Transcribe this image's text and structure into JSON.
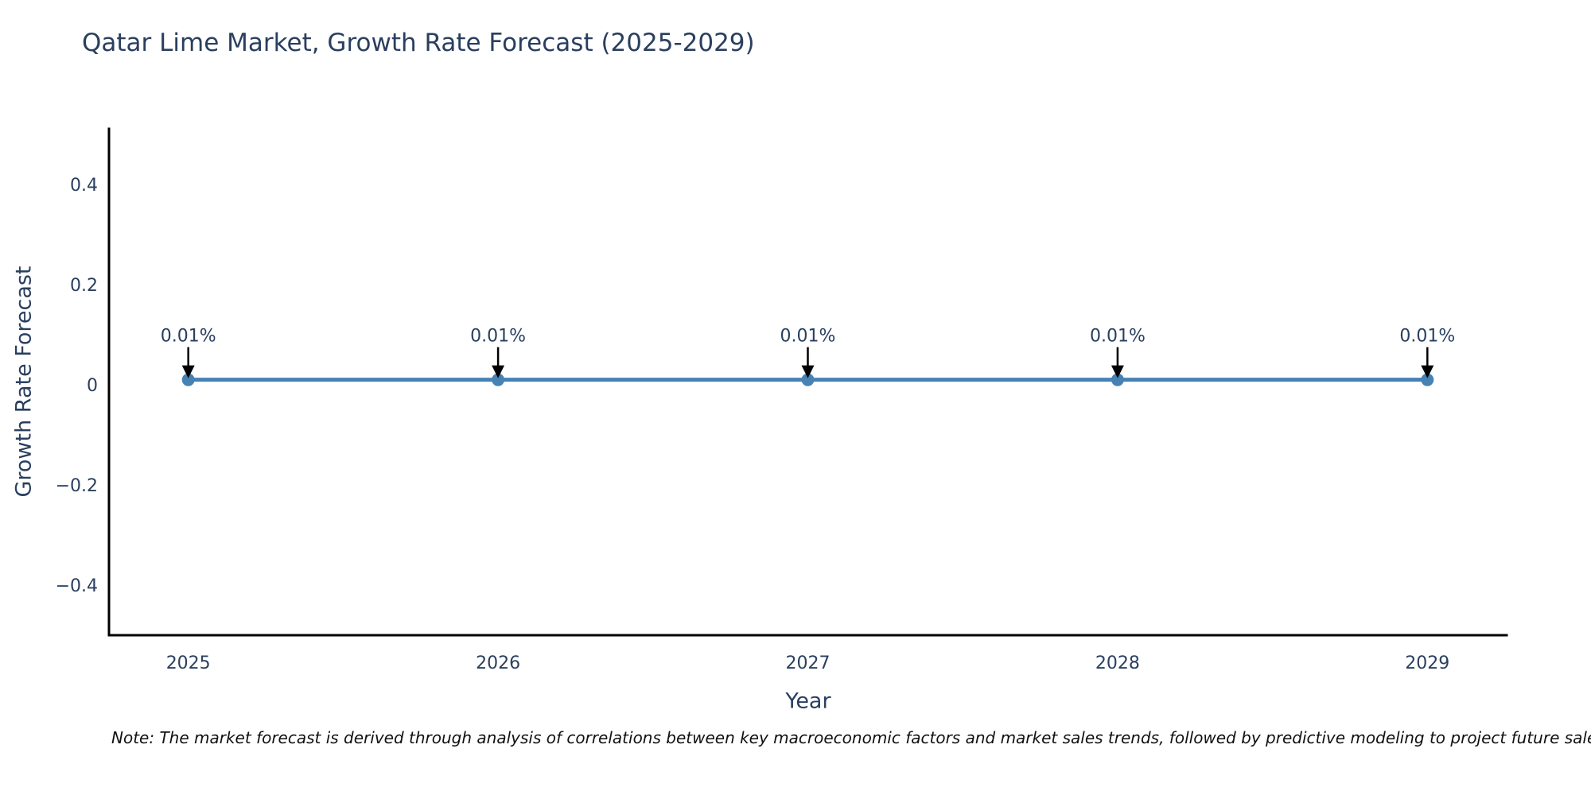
{
  "title": "Qatar Lime Market, Growth Rate Forecast (2025-2029)",
  "footnote": "Note: The market forecast is derived through analysis of correlations between key macroeconomic factors and market sales trends, followed by predictive modeling to project future sales",
  "chart_data": {
    "type": "line",
    "title": "Qatar Lime Market, Growth Rate Forecast (2025-2029)",
    "xlabel": "Year",
    "ylabel": "Growth Rate Forecast",
    "x": [
      2025,
      2026,
      2027,
      2028,
      2029
    ],
    "xticks": [
      "2025",
      "2026",
      "2027",
      "2028",
      "2029"
    ],
    "series": [
      {
        "name": "Growth Rate Forecast",
        "values": [
          0.01,
          0.01,
          0.01,
          0.01,
          0.01
        ]
      }
    ],
    "data_labels": [
      "0.01%",
      "0.01%",
      "0.01%",
      "0.01%",
      "0.01%"
    ],
    "yticks": [
      {
        "value": 0.4,
        "label": "0.4"
      },
      {
        "value": 0.2,
        "label": "0.2"
      },
      {
        "value": 0,
        "label": "0"
      },
      {
        "value": -0.2,
        "label": "−0.2"
      },
      {
        "value": -0.4,
        "label": "−0.4"
      }
    ],
    "xlim": [
      2024.744,
      2029.256
    ],
    "ylim": [
      -0.5,
      0.511
    ],
    "grid": false,
    "legend": false,
    "colors": {
      "line": "#4682b4",
      "marker": "#4682b4",
      "axis": "#000000",
      "text": "#2a3f5f",
      "annotation": "#2a3f5f",
      "arrow": "#000000",
      "note": "#111111",
      "background": "#ffffff"
    }
  }
}
